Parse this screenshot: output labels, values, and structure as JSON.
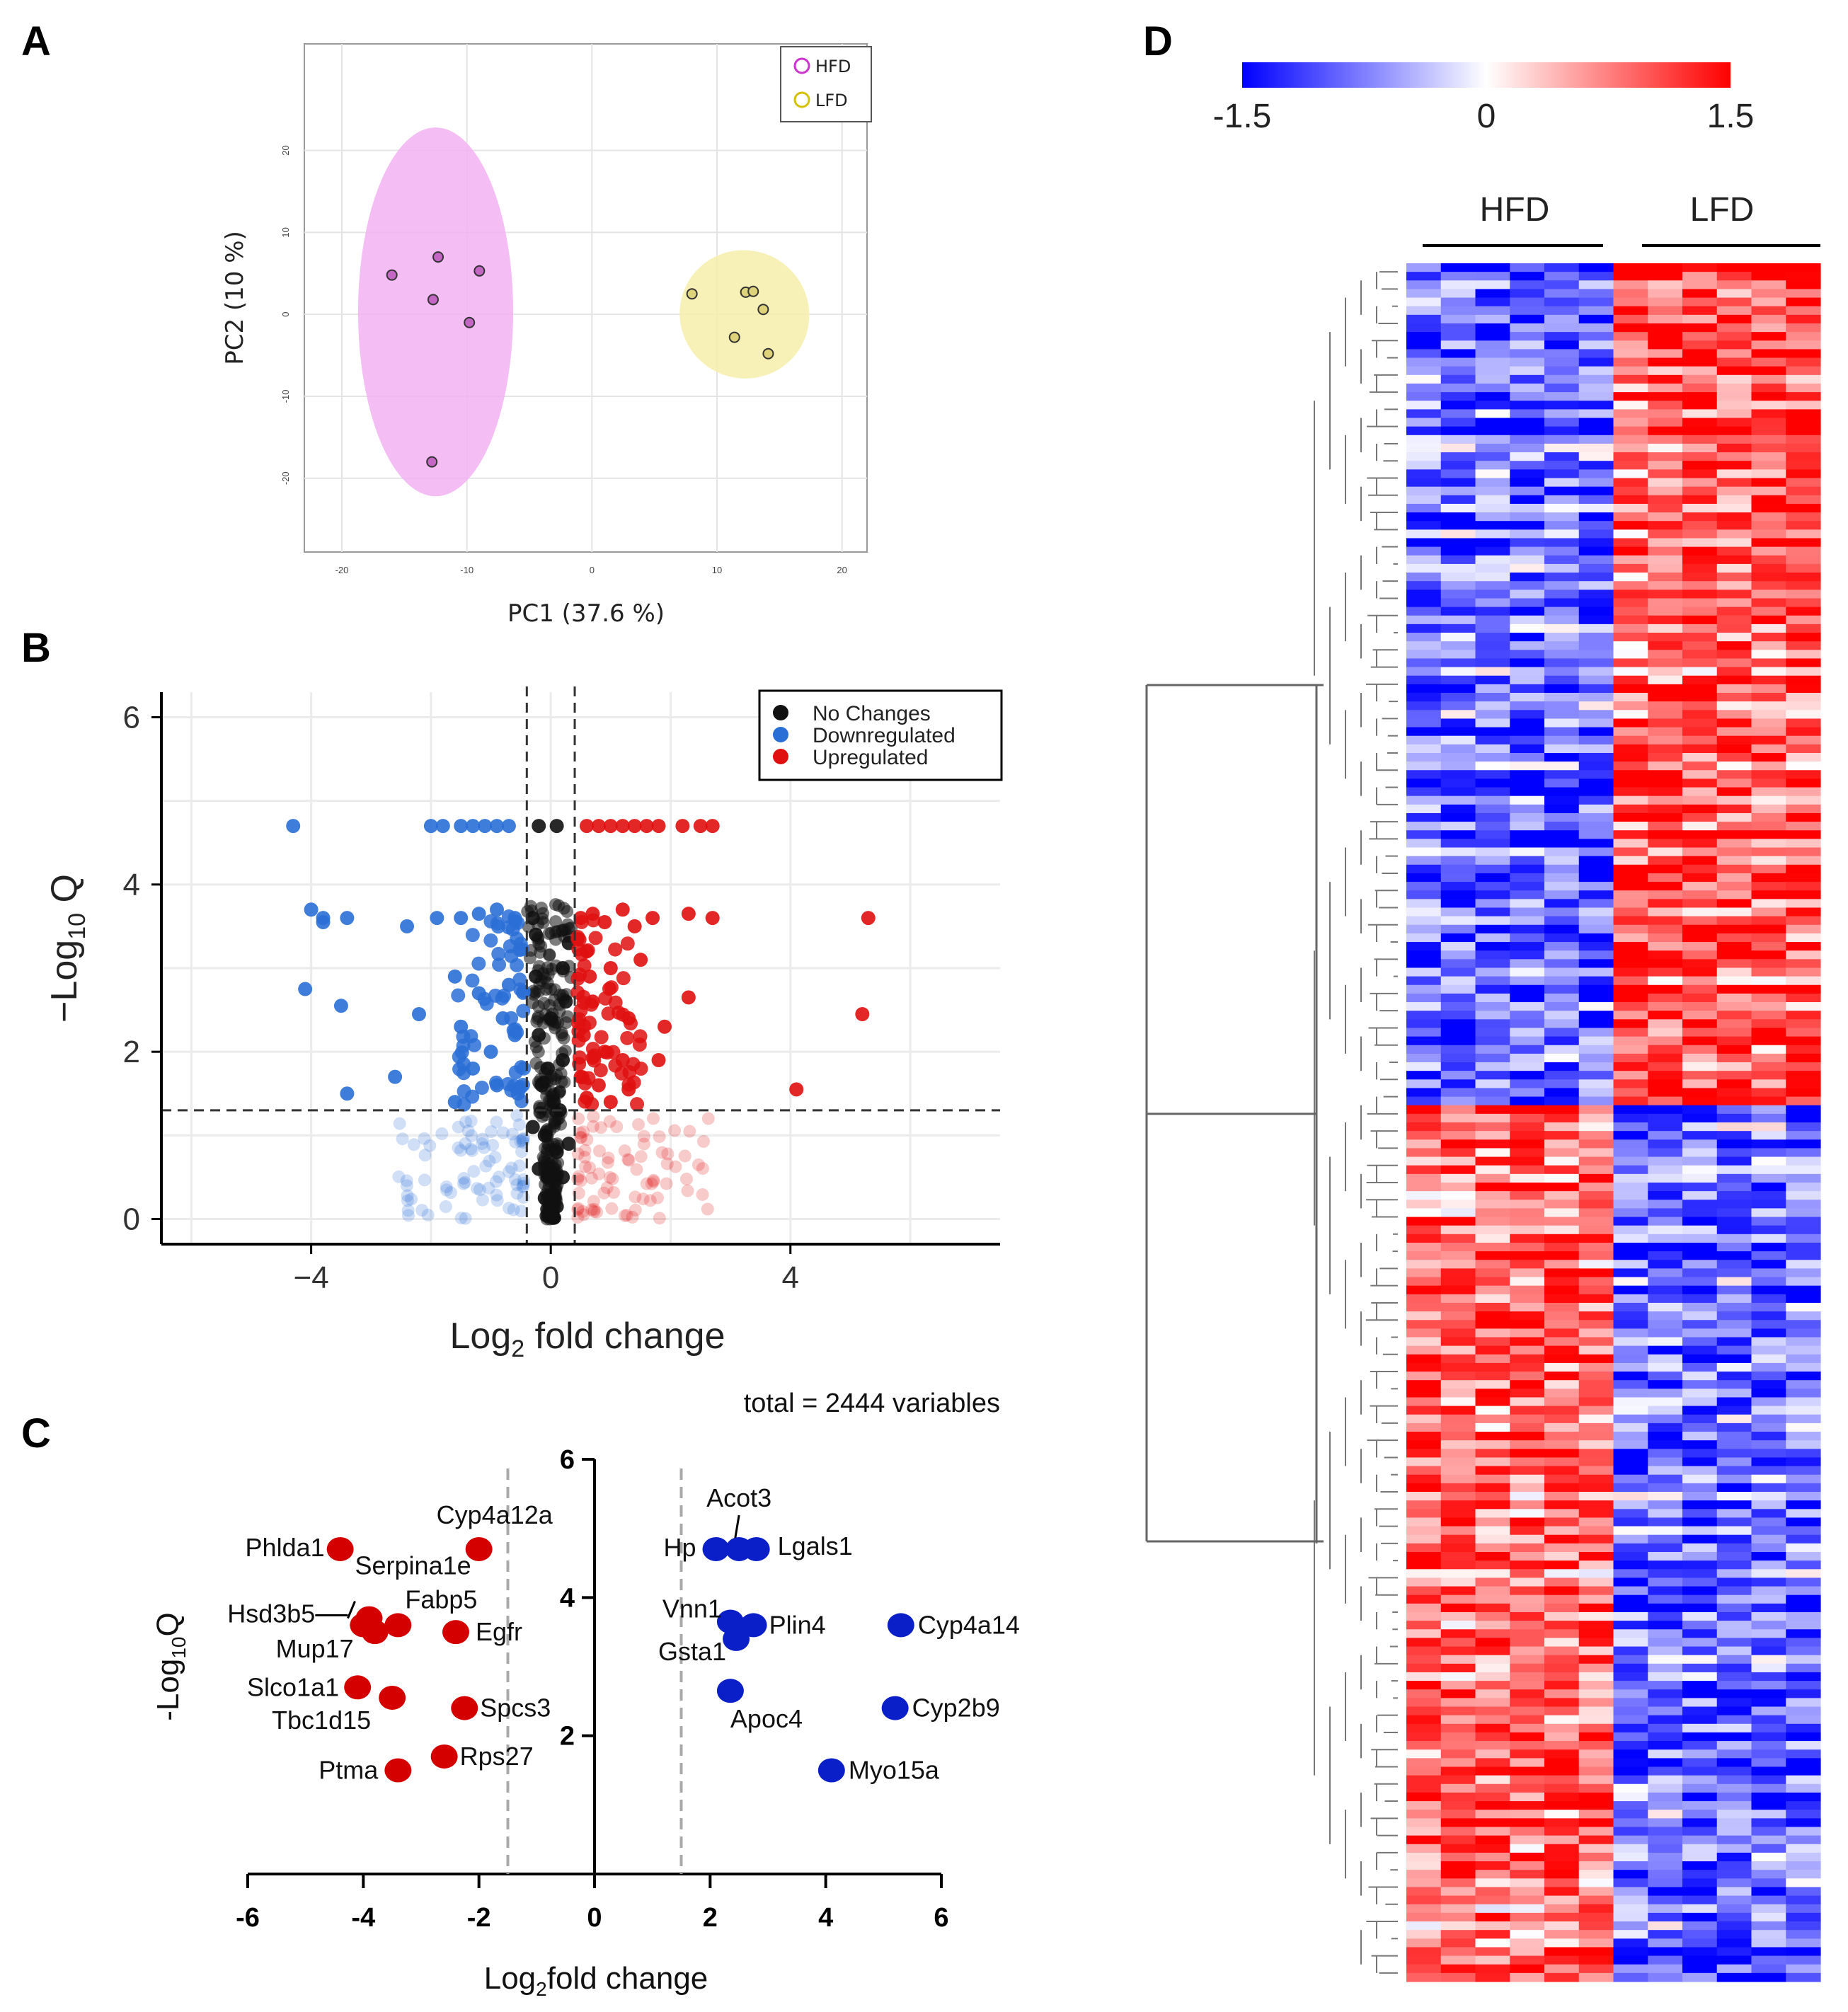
{
  "panel_labels": {
    "a": "A",
    "b": "B",
    "c": "C",
    "d": "D"
  },
  "colors": {
    "hfd": "#cc33cc",
    "hfd_fill": "#f2b3f2",
    "lfd": "#d4c000",
    "lfd_fill": "#f7efaa",
    "down_b": "#2a6fd6",
    "up_b": "#e01010",
    "none_b": "#111111",
    "up_c": "#d40000",
    "down_c": "#0a1fc8",
    "heat_low": "#0000ff",
    "heat_mid": "#ffffff",
    "heat_high": "#ff0000"
  },
  "chart_data": [
    {
      "id": "A",
      "type": "scatter",
      "title": "",
      "xlabel": "PC1 (37.6 %)",
      "ylabel": "PC2 (10 %)",
      "xlim": [
        -23,
        22
      ],
      "ylim": [
        -29,
        33
      ],
      "xticks": [
        -20,
        -10,
        0,
        10,
        20
      ],
      "xtick_labels": [
        "-20",
        "-10",
        "0",
        "10",
        "20"
      ],
      "yticks": [
        -20,
        -10,
        0,
        10,
        20
      ],
      "ytick_labels": [
        "-20",
        "-10",
        "0",
        "10",
        "20"
      ],
      "grid": true,
      "legend": {
        "position": "top-right",
        "entries": [
          "HFD",
          "LFD"
        ]
      },
      "series": [
        {
          "name": "HFD",
          "points": [
            [
              -16.0,
              4.8
            ],
            [
              -12.3,
              7.0
            ],
            [
              -9.0,
              5.3
            ],
            [
              -12.7,
              1.8
            ],
            [
              -9.8,
              -1.0
            ],
            [
              -12.8,
              -18.0
            ]
          ],
          "ellipse": {
            "cx": -12.5,
            "cy": 0.3,
            "rx": 6.2,
            "ry": 22.5
          }
        },
        {
          "name": "LFD",
          "points": [
            [
              8.0,
              2.5
            ],
            [
              12.3,
              2.7
            ],
            [
              12.9,
              2.8
            ],
            [
              13.7,
              0.6
            ],
            [
              11.4,
              -2.8
            ],
            [
              14.1,
              -4.8
            ]
          ],
          "ellipse": {
            "cx": 12.2,
            "cy": 0.0,
            "rx": 5.2,
            "ry": 7.8
          }
        }
      ]
    },
    {
      "id": "B",
      "type": "scatter",
      "title": "",
      "xlabel": "Log2 fold change",
      "ylabel": "-Log10 Q",
      "xlim": [
        -6.5,
        7.5
      ],
      "ylim": [
        -0.3,
        6.3
      ],
      "xticks": [
        -4,
        0,
        4
      ],
      "xtick_labels": [
        "−4",
        "0",
        "4"
      ],
      "yticks": [
        0,
        2,
        4,
        6
      ],
      "ytick_labels": [
        "0",
        "2",
        "4",
        "6"
      ],
      "grid": true,
      "fc_cutoff": 0.4,
      "q_cutoff": 1.3,
      "caption": "total = 2444 variables",
      "legend": {
        "position": "top-right",
        "entries": [
          "No Changes",
          "Downregulated",
          "Upregulated"
        ]
      },
      "series": [
        {
          "name": "Upregulated",
          "points": [
            [
              0.6,
              4.7
            ],
            [
              0.8,
              4.7
            ],
            [
              1.0,
              4.7
            ],
            [
              1.2,
              4.7
            ],
            [
              1.4,
              4.7
            ],
            [
              1.6,
              4.7
            ],
            [
              1.8,
              4.7
            ],
            [
              2.2,
              4.7
            ],
            [
              2.5,
              4.7
            ],
            [
              2.7,
              4.7
            ],
            [
              0.5,
              3.6
            ],
            [
              0.7,
              3.65
            ],
            [
              0.9,
              3.55
            ],
            [
              1.2,
              3.7
            ],
            [
              1.4,
              3.5
            ],
            [
              1.7,
              3.6
            ],
            [
              2.3,
              3.65
            ],
            [
              2.7,
              3.6
            ],
            [
              5.3,
              3.6
            ],
            [
              0.6,
              3.2
            ],
            [
              1.0,
              3.0
            ],
            [
              1.5,
              3.1
            ],
            [
              2.3,
              2.65
            ],
            [
              1.9,
              2.3
            ],
            [
              5.2,
              2.45
            ],
            [
              0.7,
              2.6
            ],
            [
              1.3,
              2.4
            ],
            [
              0.9,
              2.0
            ],
            [
              1.2,
              1.9
            ],
            [
              1.8,
              1.9
            ],
            [
              0.5,
              1.7
            ],
            [
              0.8,
              1.6
            ],
            [
              1.3,
              1.55
            ],
            [
              0.6,
              1.45
            ],
            [
              4.1,
              1.55
            ],
            [
              1.0,
              1.4
            ],
            [
              0.55,
              2.2
            ],
            [
              0.65,
              2.9
            ]
          ]
        },
        {
          "name": "Downregulated",
          "points": [
            [
              -4.3,
              4.7
            ],
            [
              -2.0,
              4.7
            ],
            [
              -1.8,
              4.7
            ],
            [
              -1.5,
              4.7
            ],
            [
              -1.3,
              4.7
            ],
            [
              -1.1,
              4.7
            ],
            [
              -0.9,
              4.7
            ],
            [
              -0.7,
              4.7
            ],
            [
              -4.0,
              3.7
            ],
            [
              -3.8,
              3.6
            ],
            [
              -3.4,
              3.6
            ],
            [
              -2.4,
              3.5
            ],
            [
              -1.5,
              3.6
            ],
            [
              -1.2,
              3.65
            ],
            [
              -0.9,
              3.7
            ],
            [
              -0.6,
              3.6
            ],
            [
              -3.8,
              3.55
            ],
            [
              -1.9,
              3.6
            ],
            [
              -4.1,
              2.75
            ],
            [
              -3.5,
              2.55
            ],
            [
              -2.2,
              2.45
            ],
            [
              -1.6,
              2.9
            ],
            [
              -1.2,
              2.7
            ],
            [
              -0.8,
              2.4
            ],
            [
              -1.5,
              2.3
            ],
            [
              -1.0,
              2.0
            ],
            [
              -2.6,
              1.7
            ],
            [
              -3.4,
              1.5
            ],
            [
              -1.6,
              1.4
            ],
            [
              -0.9,
              1.6
            ],
            [
              -1.3,
              1.8
            ],
            [
              -0.6,
              2.2
            ],
            [
              -0.7,
              2.8
            ],
            [
              -0.55,
              1.5
            ]
          ]
        },
        {
          "name": "No Changes",
          "points": [
            [
              0.0,
              0.1
            ],
            [
              0.05,
              0.3
            ],
            [
              -0.05,
              0.5
            ],
            [
              0.1,
              0.8
            ],
            [
              -0.1,
              1.0
            ],
            [
              0.15,
              1.3
            ],
            [
              -0.15,
              1.6
            ],
            [
              0.2,
              1.9
            ],
            [
              -0.2,
              2.2
            ],
            [
              0.25,
              2.6
            ],
            [
              -0.25,
              2.9
            ],
            [
              0.3,
              3.3
            ],
            [
              -0.3,
              3.6
            ],
            [
              0.1,
              4.7
            ],
            [
              -0.2,
              4.7
            ],
            [
              0.0,
              0.2
            ],
            [
              0.1,
              0.15
            ],
            [
              -0.1,
              0.25
            ],
            [
              0.2,
              0.5
            ],
            [
              -0.2,
              0.6
            ],
            [
              0.3,
              0.9
            ],
            [
              -0.3,
              1.1
            ],
            [
              0.05,
              1.4
            ],
            [
              -0.05,
              1.8
            ],
            [
              0.0,
              2.4
            ],
            [
              0.2,
              3.0
            ],
            [
              -0.25,
              3.4
            ]
          ]
        }
      ]
    },
    {
      "id": "C",
      "type": "scatter",
      "title": "",
      "xlabel": "Log2fold change",
      "ylabel": "-Log10Q",
      "xlim": [
        -6,
        6
      ],
      "ylim": [
        0,
        6
      ],
      "xticks": [
        -6,
        -4,
        -2,
        0,
        2,
        4,
        6
      ],
      "xtick_labels": [
        "-6",
        "-4",
        "-2",
        "0",
        "2",
        "4",
        "6"
      ],
      "yticks": [
        2,
        4,
        6
      ],
      "ytick_labels": [
        "2",
        "4",
        "6"
      ],
      "fc_cutoff": 1.5,
      "series": [
        {
          "name": "Upregulated",
          "points": [
            {
              "gene": "Phlda1",
              "x": -4.4,
              "y": 4.7
            },
            {
              "gene": "Cyp4a12a",
              "x": -2.0,
              "y": 4.7
            },
            {
              "gene": "Serpina1e",
              "x": -3.9,
              "y": 3.7
            },
            {
              "gene": "Hsd3b5",
              "x": -4.0,
              "y": 3.6
            },
            {
              "gene": "Fabp5",
              "x": -3.4,
              "y": 3.6
            },
            {
              "gene": "Mup17",
              "x": -3.8,
              "y": 3.5
            },
            {
              "gene": "Egfr",
              "x": -2.4,
              "y": 3.5
            },
            {
              "gene": "Slco1a1",
              "x": -4.1,
              "y": 2.7
            },
            {
              "gene": "Tbc1d15",
              "x": -3.5,
              "y": 2.55
            },
            {
              "gene": "Spcs3",
              "x": -2.25,
              "y": 2.4
            },
            {
              "gene": "Rps27",
              "x": -2.6,
              "y": 1.7
            },
            {
              "gene": "Ptma",
              "x": -3.4,
              "y": 1.5
            }
          ]
        },
        {
          "name": "Downregulated",
          "points": [
            {
              "gene": "Hp",
              "x": 2.1,
              "y": 4.7
            },
            {
              "gene": "Acot3",
              "x": 2.5,
              "y": 4.7
            },
            {
              "gene": "Lgals1",
              "x": 2.8,
              "y": 4.7
            },
            {
              "gene": "Vnn1",
              "x": 2.35,
              "y": 3.65
            },
            {
              "gene": "Plin4",
              "x": 2.75,
              "y": 3.6
            },
            {
              "gene": "Gsta1",
              "x": 2.45,
              "y": 3.4
            },
            {
              "gene": "Cyp4a14",
              "x": 5.3,
              "y": 3.6
            },
            {
              "gene": "Apoc4",
              "x": 2.35,
              "y": 2.65
            },
            {
              "gene": "Cyp2b9",
              "x": 5.2,
              "y": 2.4
            },
            {
              "gene": "Myo15a",
              "x": 4.1,
              "y": 1.5
            }
          ]
        }
      ]
    },
    {
      "id": "D",
      "type": "heatmap",
      "title": "",
      "colorbar": {
        "min": -1.5,
        "max": 1.5,
        "tick_labels": [
          "-1.5",
          "0",
          "1.5"
        ]
      },
      "groups": [
        {
          "name": "HFD",
          "columns": 6
        },
        {
          "name": "LFD",
          "columns": 6
        }
      ],
      "rows": 200,
      "row_blocks": [
        {
          "name": "upregulated in LFD",
          "fraction": 0.49,
          "hfd_mean": -0.9,
          "lfd_mean": 1.0
        },
        {
          "name": "upregulated in HFD",
          "fraction": 0.51,
          "hfd_mean": 0.9,
          "lfd_mean": -0.9
        }
      ]
    }
  ]
}
